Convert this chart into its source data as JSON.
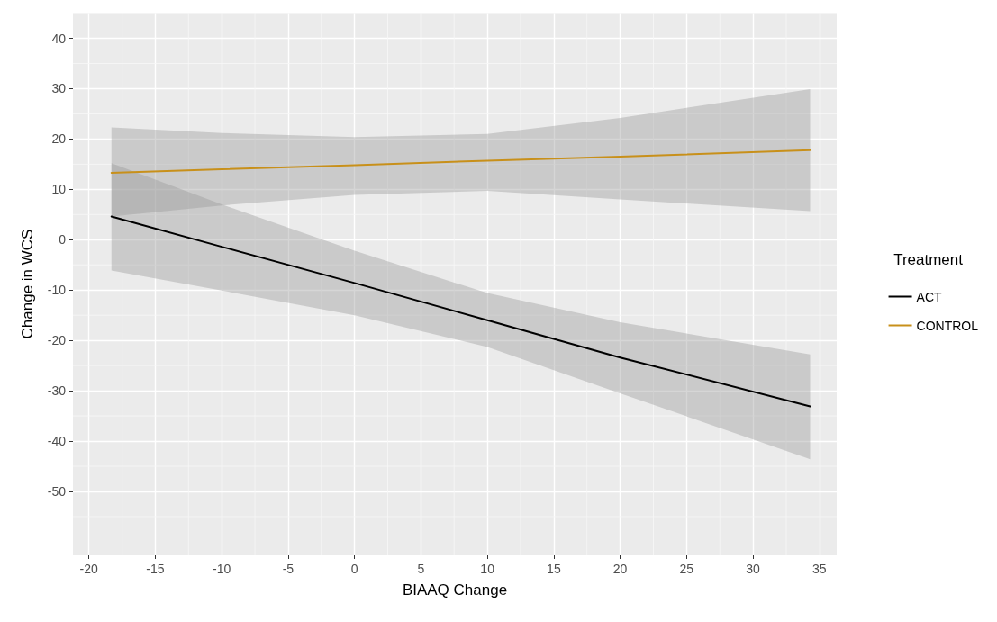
{
  "chart_data": {
    "type": "line",
    "xlabel": "BIAAQ Change",
    "ylabel": "Change in WCS",
    "legend_title": "Treatment",
    "legend": "right",
    "grid": true,
    "marker": "none",
    "line_style": "solid",
    "xlim": [
      -21.2,
      36.3
    ],
    "xticks": [
      -20,
      -15,
      -10,
      -5,
      0,
      5,
      10,
      15,
      20,
      25,
      30,
      35
    ],
    "ylim": [
      -62.7,
      45.1
    ],
    "yticks": [
      -50,
      -40,
      -30,
      -20,
      -10,
      0,
      10,
      20,
      30,
      40
    ],
    "series": [
      {
        "name": "ACT",
        "color": "#000000",
        "x": [
          -18.3,
          -10,
          0,
          10,
          20,
          34.3
        ],
        "values": [
          4.6,
          -1.4,
          -8.6,
          -16.0,
          -23.4,
          -33.1
        ],
        "lower": [
          -6.1,
          -10.1,
          -15.0,
          -21.3,
          -30.5,
          -43.6
        ],
        "upper": [
          15.2,
          7.0,
          -2.2,
          -10.6,
          -16.4,
          -22.8
        ]
      },
      {
        "name": "CONTROL",
        "color": "#c8901a",
        "x": [
          -18.3,
          -10,
          0,
          10,
          20,
          34.3
        ],
        "values": [
          13.3,
          14.0,
          14.8,
          15.7,
          16.5,
          17.8
        ],
        "lower": [
          4.6,
          6.8,
          8.9,
          9.7,
          8.0,
          5.7
        ],
        "upper": [
          22.3,
          21.2,
          20.4,
          21.0,
          24.2,
          29.9
        ]
      }
    ]
  }
}
